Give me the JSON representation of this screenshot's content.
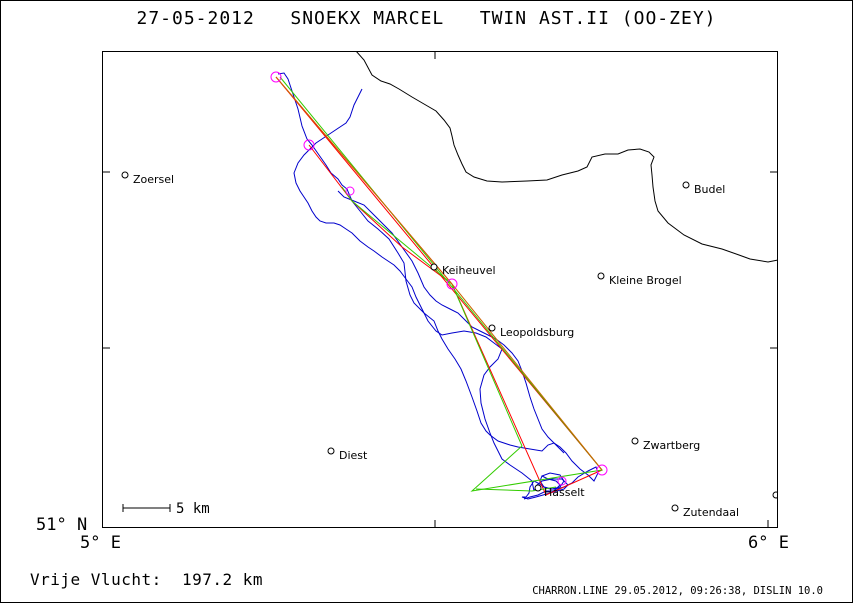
{
  "header": {
    "title": "27-05-2012   SNOEKX MARCEL   TWIN AST.II (OO-ZEY)"
  },
  "axes": {
    "y_label": "51° N",
    "x_left_label": "5° E",
    "x_right_label": "6° E"
  },
  "scale_bar": {
    "label": "5 km"
  },
  "places": [
    {
      "name": "Zoersel"
    },
    {
      "name": "Budel"
    },
    {
      "name": "Keiheuvel"
    },
    {
      "name": "Kleine Brogel"
    },
    {
      "name": "Leopoldsburg"
    },
    {
      "name": "Diest"
    },
    {
      "name": "Zwartberg"
    },
    {
      "name": "Hasselt"
    },
    {
      "name": "Zutendaal"
    }
  ],
  "result": {
    "text": "Vrije Vlucht:  197.2 km"
  },
  "footer": {
    "text": "CHARRON.LINE 29.05.2012, 09:26:38, DISLIN 10.0"
  },
  "colors": {
    "track": "#0000cc",
    "route_red": "#ff0000",
    "route_green": "#33cc00",
    "turnpoint": "#ff00ff",
    "border": "#000000"
  }
}
